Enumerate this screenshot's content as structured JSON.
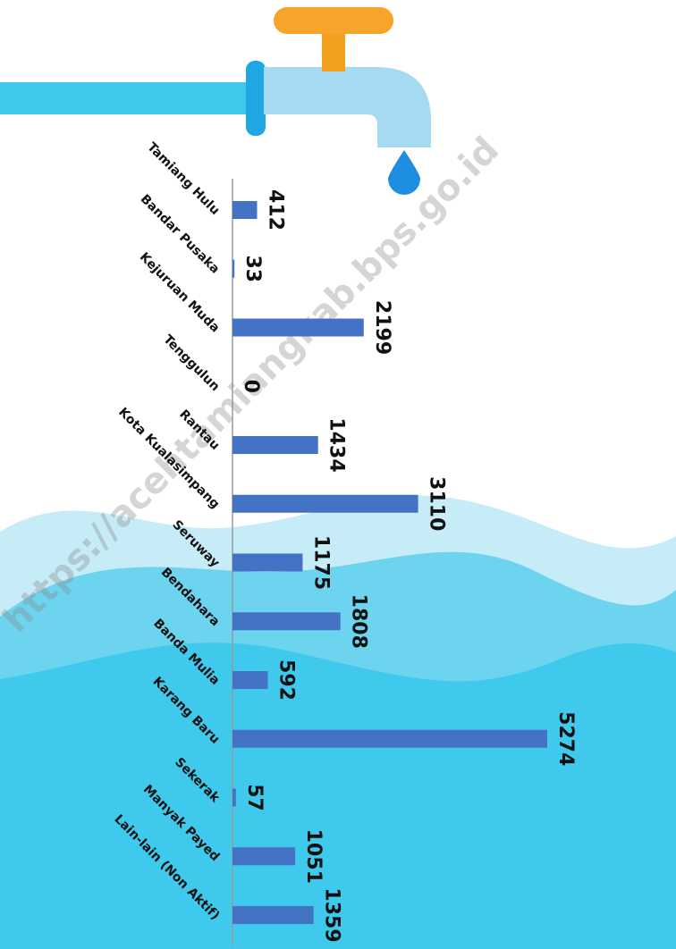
{
  "chart_data": {
    "type": "bar",
    "orientation": "horizontal",
    "categories": [
      "Tamiang Hulu",
      "Bandar Pusaka",
      "Kejuruan Muda",
      "Tenggulun",
      "Rantau",
      "Kota Kualasimpang",
      "Seruway",
      "Bendahara",
      "Banda Mulia",
      "Karang Baru",
      "Sekerak",
      "Manyak Payed",
      "Lain-lain (Non Aktif)"
    ],
    "values": [
      412,
      33,
      2199,
      0,
      1434,
      3110,
      1175,
      1808,
      592,
      5274,
      57,
      1051,
      1359
    ],
    "color": "#4472c4",
    "watermark": "https://acehtamiangkab.bps.go.id"
  }
}
